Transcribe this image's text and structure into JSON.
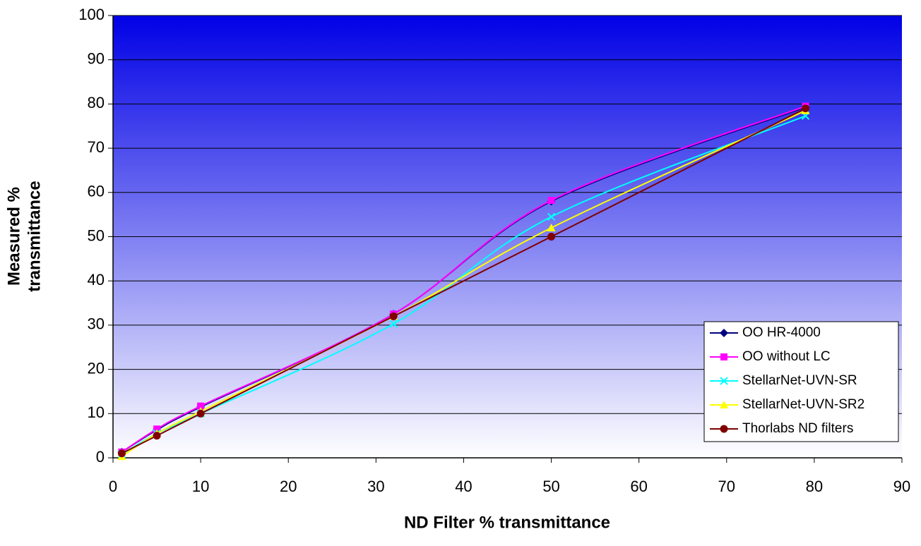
{
  "chart_data": {
    "type": "line",
    "xlabel": "ND Filter % transmittance",
    "ylabel": [
      "Measured %",
      "transmittance"
    ],
    "x": [
      1,
      5,
      10,
      32,
      50,
      79
    ],
    "series": [
      {
        "name": "OO HR-4000",
        "color": "#000080",
        "marker": "diamond",
        "values": [
          1.3,
          6.3,
          11.5,
          32.5,
          58,
          79.3
        ]
      },
      {
        "name": "OO without LC",
        "color": "#ff00ff",
        "marker": "square",
        "values": [
          1.3,
          6.5,
          11.7,
          32.5,
          58.2,
          79.5
        ]
      },
      {
        "name": "StellarNet-UVN-SR",
        "color": "#00ffff",
        "marker": "x",
        "values": [
          0.8,
          5.5,
          10,
          30.3,
          54.5,
          77.3
        ]
      },
      {
        "name": "StellarNet-UVN-SR2",
        "color": "#ffff00",
        "marker": "triangle",
        "values": [
          0.3,
          5.5,
          10.5,
          32,
          52,
          78.5
        ]
      },
      {
        "name": "Thorlabs ND filters",
        "color": "#800000",
        "marker": "circle",
        "values": [
          1,
          5,
          10,
          32,
          50,
          79
        ]
      }
    ],
    "xlim": [
      0,
      90
    ],
    "xticks": [
      0,
      10,
      20,
      30,
      40,
      50,
      60,
      70,
      80,
      90
    ],
    "ylim": [
      0,
      100
    ],
    "yticks": [
      0,
      10,
      20,
      30,
      40,
      50,
      60,
      70,
      80,
      90,
      100
    ],
    "grid": true,
    "smooth": true,
    "legend": "lower right"
  }
}
